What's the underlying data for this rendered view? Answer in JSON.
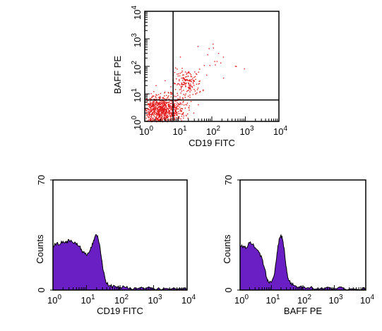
{
  "colors": {
    "dots": "#e41a1c",
    "histogram_fill": "#6a1fc4",
    "axes": "#000000"
  },
  "chart_data": [
    {
      "type": "scatter",
      "xlabel": "CD19 FITC",
      "ylabel": "BAFF PE",
      "xscale": "log",
      "yscale": "log",
      "xlim": [
        1,
        10000
      ],
      "ylim": [
        1,
        10000
      ],
      "x_ticks": [
        {
          "base": "10",
          "exp": "0",
          "value": 1
        },
        {
          "base": "10",
          "exp": "1",
          "value": 10
        },
        {
          "base": "10",
          "exp": "2",
          "value": 100
        },
        {
          "base": "10",
          "exp": "3",
          "value": 1000
        },
        {
          "base": "10",
          "exp": "4",
          "value": 10000
        }
      ],
      "y_ticks": [
        {
          "base": "10",
          "exp": "0",
          "value": 1
        },
        {
          "base": "10",
          "exp": "1",
          "value": 10
        },
        {
          "base": "10",
          "exp": "2",
          "value": 100
        },
        {
          "base": "10",
          "exp": "3",
          "value": 1000
        },
        {
          "base": "10",
          "exp": "4",
          "value": 10000
        }
      ],
      "quadrant_gate": {
        "x": 7,
        "y": 6
      },
      "clusters": [
        {
          "center_x": 3,
          "center_y": 2.5,
          "spread_x_decades": 0.35,
          "spread_y_decades": 0.28,
          "approx_points": 900
        },
        {
          "center_x": 18,
          "center_y": 25,
          "spread_x_decades": 0.22,
          "spread_y_decades": 0.25,
          "approx_points": 170
        },
        {
          "center_x": 150,
          "center_y": 200,
          "spread_x_decades": 0.3,
          "spread_y_decades": 0.35,
          "approx_points": 18
        }
      ],
      "grid": false,
      "legend": "none"
    },
    {
      "type": "area",
      "xlabel": "CD19 FITC",
      "ylabel": "Counts",
      "xscale": "log",
      "xlim": [
        1,
        10000
      ],
      "ylim": [
        0,
        70
      ],
      "x_ticks": [
        {
          "base": "10",
          "exp": "0",
          "value": 1
        },
        {
          "base": "10",
          "exp": "1",
          "value": 10
        },
        {
          "base": "10",
          "exp": "2",
          "value": 100
        },
        {
          "base": "10",
          "exp": "3",
          "value": 1000
        },
        {
          "base": "10",
          "exp": "4",
          "value": 10000
        }
      ],
      "y_ticks": [
        {
          "label": "0",
          "value": 0
        },
        {
          "label": "70",
          "value": 70
        }
      ],
      "x": [
        1,
        1.3,
        1.6,
        2,
        2.5,
        3,
        4,
        5,
        6,
        7,
        8,
        10,
        12,
        14,
        16,
        18,
        20,
        22,
        25,
        28,
        32,
        36,
        40,
        50,
        60,
        80,
        100,
        150,
        200,
        300,
        500,
        1000,
        2000,
        5000,
        10000
      ],
      "y": [
        28,
        30,
        29,
        31,
        30,
        32,
        30,
        29,
        28,
        26,
        24,
        22,
        24,
        27,
        31,
        34,
        35,
        33,
        28,
        20,
        12,
        7,
        4,
        3,
        2,
        2,
        2,
        1.5,
        1.5,
        1,
        1,
        1,
        1,
        0.5,
        0.5
      ],
      "grid": false,
      "legend": "none"
    },
    {
      "type": "area",
      "xlabel": "BAFF PE",
      "ylabel": "Counts",
      "xscale": "log",
      "xlim": [
        1,
        10000
      ],
      "ylim": [
        0,
        70
      ],
      "x_ticks": [
        {
          "base": "10",
          "exp": "0",
          "value": 1
        },
        {
          "base": "10",
          "exp": "1",
          "value": 10
        },
        {
          "base": "10",
          "exp": "2",
          "value": 100
        },
        {
          "base": "10",
          "exp": "3",
          "value": 1000
        },
        {
          "base": "10",
          "exp": "4",
          "value": 10000
        }
      ],
      "y_ticks": [
        {
          "label": "0",
          "value": 0
        },
        {
          "label": "70",
          "value": 70
        }
      ],
      "x": [
        1,
        1.3,
        1.6,
        2,
        2.5,
        3,
        4,
        5,
        6,
        7,
        8,
        10,
        12,
        14,
        16,
        18,
        20,
        22,
        25,
        28,
        32,
        36,
        40,
        50,
        60,
        80,
        100,
        150,
        200,
        300,
        500,
        1000,
        2000,
        5000,
        10000
      ],
      "y": [
        28,
        28,
        27,
        30,
        29,
        27,
        24,
        20,
        14,
        8,
        5,
        5,
        9,
        18,
        28,
        33,
        35,
        33,
        27,
        18,
        10,
        6,
        4,
        3,
        2.5,
        2,
        2,
        1.5,
        1.5,
        1,
        1,
        1,
        1,
        0.5,
        0.5
      ],
      "grid": false,
      "legend": "none"
    }
  ]
}
